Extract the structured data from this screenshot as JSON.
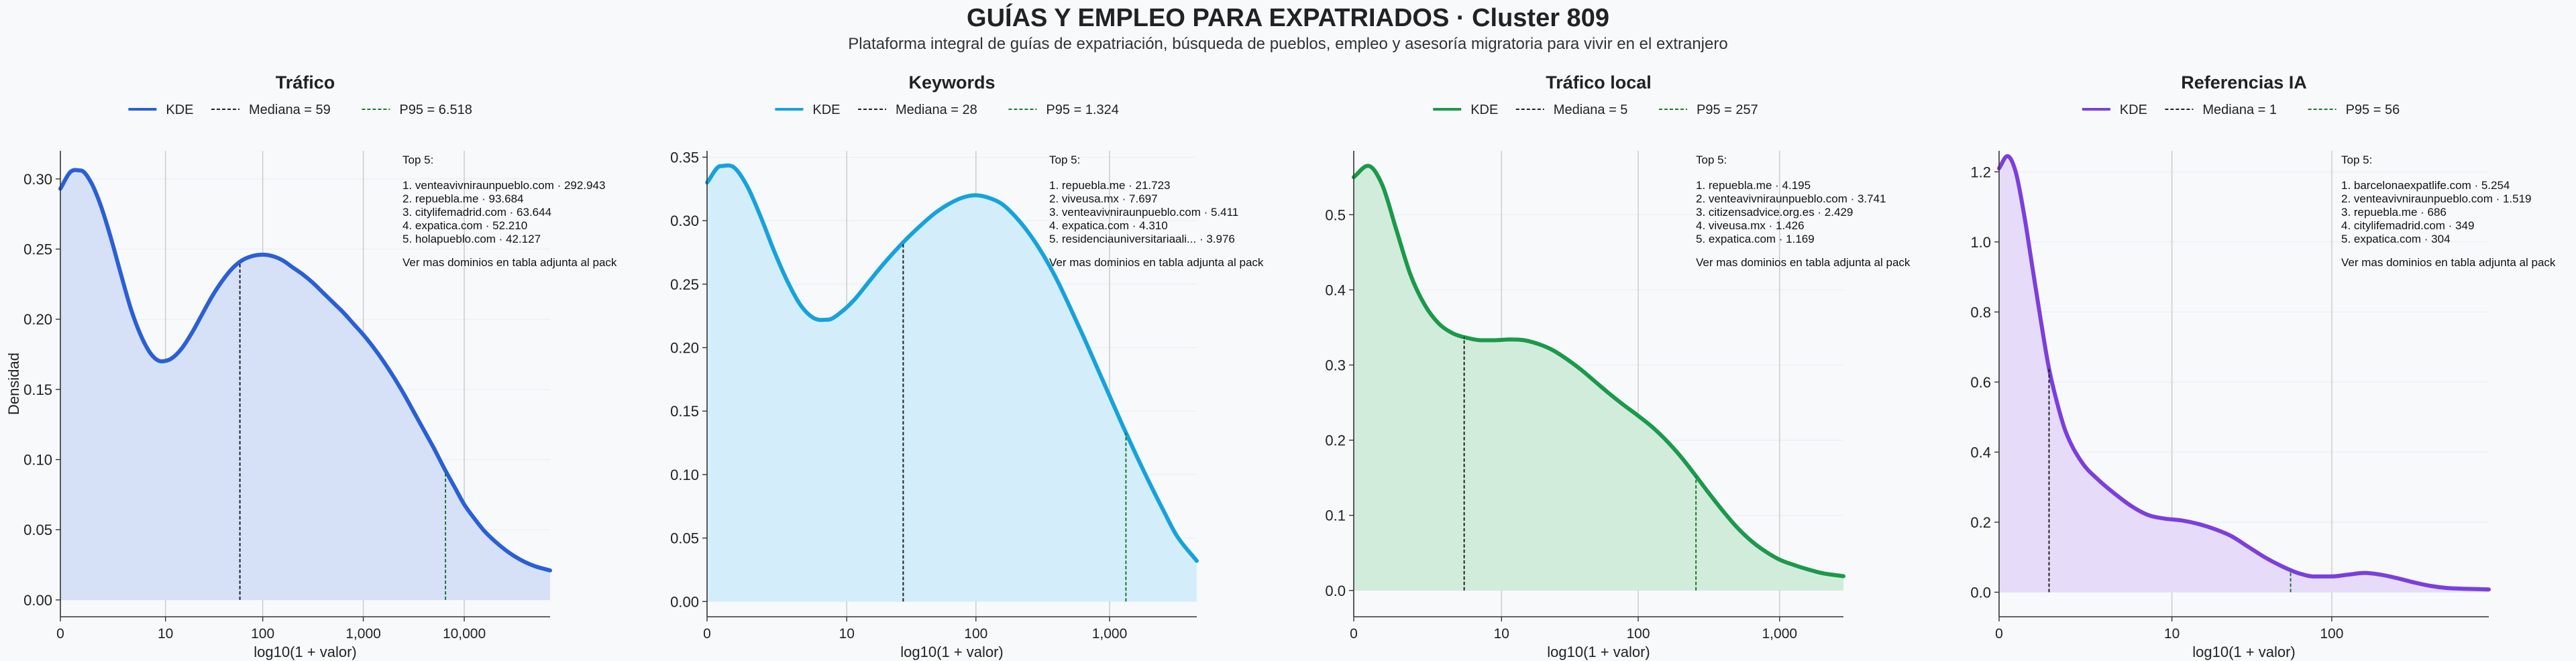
{
  "title": "GUÍAS Y EMPLEO PARA EXPATRIADOS · Cluster 809",
  "subtitle": "Plataforma integral de guías de expatriación, búsqueda de pueblos, empleo y asesoría migratoria para vivir en el extranjero",
  "chart_data": [
    {
      "type": "area",
      "title": "Tráfico",
      "xlabel": "log10(1 + valor)",
      "ylabel": "Densidad",
      "color": "#2a5fd6",
      "fill": "#d6e1f8",
      "xlim": [
        0,
        4.85
      ],
      "ylim": [
        -0.012,
        0.32
      ],
      "xticks": [
        0,
        1.041,
        2.004,
        3.0,
        4.0
      ],
      "xticklabels": [
        "0",
        "10",
        "100",
        "1,000",
        "10,000"
      ],
      "yticks": [
        0.0,
        0.05,
        0.1,
        0.15,
        0.2,
        0.25,
        0.3
      ],
      "yticklabels": [
        "0.00",
        "0.05",
        "0.10",
        "0.15",
        "0.20",
        "0.25",
        "0.30"
      ],
      "legend": {
        "kde": "KDE",
        "median": "Mediana = 59",
        "p95": "P95 = 6.518"
      },
      "median_x": 1.778,
      "p95_x": 3.814,
      "kde_x": [
        0,
        0.1,
        0.2,
        0.3,
        0.4,
        0.5,
        0.6,
        0.7,
        0.8,
        0.9,
        1.0,
        1.1,
        1.2,
        1.3,
        1.4,
        1.5,
        1.6,
        1.7,
        1.8,
        1.9,
        2.0,
        2.1,
        2.2,
        2.3,
        2.4,
        2.5,
        2.6,
        2.7,
        2.8,
        2.9,
        3.0,
        3.1,
        3.2,
        3.3,
        3.4,
        3.5,
        3.6,
        3.7,
        3.8,
        3.9,
        4.0,
        4.1,
        4.2,
        4.3,
        4.4,
        4.5,
        4.6,
        4.7,
        4.85
      ],
      "kde_y": [
        0.293,
        0.305,
        0.306,
        0.298,
        0.281,
        0.258,
        0.232,
        0.207,
        0.188,
        0.175,
        0.17,
        0.172,
        0.179,
        0.19,
        0.203,
        0.216,
        0.227,
        0.236,
        0.242,
        0.245,
        0.246,
        0.245,
        0.242,
        0.237,
        0.232,
        0.226,
        0.219,
        0.212,
        0.205,
        0.197,
        0.189,
        0.18,
        0.17,
        0.159,
        0.147,
        0.134,
        0.121,
        0.108,
        0.094,
        0.081,
        0.068,
        0.058,
        0.049,
        0.042,
        0.036,
        0.031,
        0.027,
        0.024,
        0.021
      ],
      "top5": {
        "heading": "Top 5:",
        "items": [
          "1. venteavivniraunpueblo.com · 292.943",
          "2. repuebla.me · 93.684",
          "3. citylifemadrid.com · 63.644",
          "4. expatica.com · 52.210",
          "5. holapueblo.com · 42.127"
        ],
        "footer": "Ver mas dominios en tabla adjunta al pack"
      }
    },
    {
      "type": "area",
      "title": "Keywords",
      "xlabel": "log10(1 + valor)",
      "ylabel": "",
      "color": "#17a2dc",
      "fill": "#d3eefa",
      "xlim": [
        0,
        3.65
      ],
      "ylim": [
        -0.012,
        0.355
      ],
      "xticks": [
        0,
        1.041,
        2.004,
        3.0
      ],
      "xticklabels": [
        "0",
        "10",
        "100",
        "1,000"
      ],
      "yticks": [
        0.0,
        0.05,
        0.1,
        0.15,
        0.2,
        0.25,
        0.3,
        0.35
      ],
      "yticklabels": [
        "0.00",
        "0.05",
        "0.10",
        "0.15",
        "0.20",
        "0.25",
        "0.30",
        "0.35"
      ],
      "legend": {
        "kde": "KDE",
        "median": "Mediana = 28",
        "p95": "P95 = 1.324"
      },
      "median_x": 1.462,
      "p95_x": 3.122,
      "kde_x": [
        0,
        0.1,
        0.2,
        0.3,
        0.4,
        0.5,
        0.6,
        0.7,
        0.8,
        0.9,
        1.0,
        1.1,
        1.2,
        1.3,
        1.4,
        1.5,
        1.6,
        1.7,
        1.8,
        1.9,
        2.0,
        2.1,
        2.2,
        2.3,
        2.4,
        2.5,
        2.6,
        2.7,
        2.8,
        2.9,
        3.0,
        3.1,
        3.2,
        3.3,
        3.4,
        3.5,
        3.65
      ],
      "kde_y": [
        0.33,
        0.343,
        0.342,
        0.327,
        0.303,
        0.276,
        0.252,
        0.233,
        0.223,
        0.222,
        0.228,
        0.238,
        0.251,
        0.264,
        0.276,
        0.287,
        0.297,
        0.306,
        0.313,
        0.318,
        0.32,
        0.318,
        0.313,
        0.303,
        0.29,
        0.274,
        0.255,
        0.233,
        0.21,
        0.186,
        0.162,
        0.138,
        0.115,
        0.093,
        0.072,
        0.052,
        0.032
      ],
      "top5": {
        "heading": "Top 5:",
        "items": [
          "1. repuebla.me · 21.723",
          "2. viveusa.mx · 7.697",
          "3. venteavivniraunpueblo.com · 5.411",
          "4. expatica.com · 4.310",
          "5. residenciauniversitariaali... · 3.976"
        ],
        "footer": "Ver mas dominios en tabla adjunta al pack"
      }
    },
    {
      "type": "area",
      "title": "Tráfico local",
      "xlabel": "log10(1 + valor)",
      "ylabel": "",
      "color": "#1a9a4a",
      "fill": "#d2ecdb",
      "xlim": [
        0,
        3.45
      ],
      "ylim": [
        -0.035,
        0.585
      ],
      "xticks": [
        0,
        1.041,
        2.004,
        3.0
      ],
      "xticklabels": [
        "0",
        "10",
        "100",
        "1,000"
      ],
      "yticks": [
        0.0,
        0.1,
        0.2,
        0.3,
        0.4,
        0.5
      ],
      "yticklabels": [
        "0.0",
        "0.1",
        "0.2",
        "0.3",
        "0.4",
        "0.5"
      ],
      "legend": {
        "kde": "KDE",
        "median": "Mediana = 5",
        "p95": "P95 = 257"
      },
      "median_x": 0.778,
      "p95_x": 2.411,
      "kde_x": [
        0,
        0.1,
        0.2,
        0.3,
        0.4,
        0.5,
        0.6,
        0.7,
        0.8,
        0.9,
        1.0,
        1.1,
        1.2,
        1.3,
        1.4,
        1.5,
        1.6,
        1.7,
        1.8,
        1.9,
        2.0,
        2.1,
        2.2,
        2.3,
        2.4,
        2.5,
        2.6,
        2.7,
        2.8,
        2.9,
        3.0,
        3.1,
        3.2,
        3.3,
        3.45
      ],
      "kde_y": [
        0.55,
        0.565,
        0.54,
        0.48,
        0.42,
        0.38,
        0.355,
        0.342,
        0.336,
        0.333,
        0.333,
        0.334,
        0.333,
        0.328,
        0.32,
        0.308,
        0.294,
        0.278,
        0.262,
        0.247,
        0.233,
        0.218,
        0.2,
        0.179,
        0.155,
        0.13,
        0.106,
        0.084,
        0.066,
        0.052,
        0.041,
        0.034,
        0.028,
        0.023,
        0.019
      ],
      "top5": {
        "heading": "Top 5:",
        "items": [
          "1. repuebla.me · 4.195",
          "2. venteavivniraunpueblo.com · 3.741",
          "3. citizensadvice.org.es · 2.429",
          "4. viveusa.mx · 1.426",
          "5. expatica.com · 1.169"
        ],
        "footer": "Ver mas dominios en tabla adjunta al pack"
      }
    },
    {
      "type": "area",
      "title": "Referencias IA",
      "xlabel": "log10(1 + valor)",
      "ylabel": "",
      "color": "#7b3fdc",
      "fill": "#e6dbf8",
      "xlim": [
        0,
        2.95
      ],
      "ylim": [
        -0.07,
        1.26
      ],
      "xticks": [
        0,
        1.041,
        2.004
      ],
      "xticklabels": [
        "0",
        "10",
        "100"
      ],
      "yticks": [
        0.0,
        0.2,
        0.4,
        0.6,
        0.8,
        1.0,
        1.2
      ],
      "yticklabels": [
        "0.0",
        "0.2",
        "0.4",
        "0.6",
        "0.8",
        "1.0",
        "1.2"
      ],
      "legend": {
        "kde": "KDE",
        "median": "Mediana = 1",
        "p95": "P95 = 56"
      },
      "median_x": 0.301,
      "p95_x": 1.756,
      "kde_x": [
        0,
        0.05,
        0.1,
        0.15,
        0.2,
        0.25,
        0.3,
        0.35,
        0.4,
        0.5,
        0.6,
        0.7,
        0.8,
        0.9,
        1.0,
        1.1,
        1.2,
        1.3,
        1.4,
        1.5,
        1.6,
        1.7,
        1.8,
        1.9,
        2.0,
        2.1,
        2.2,
        2.3,
        2.4,
        2.5,
        2.6,
        2.7,
        2.8,
        2.95
      ],
      "kde_y": [
        1.21,
        1.245,
        1.2,
        1.08,
        0.93,
        0.78,
        0.64,
        0.54,
        0.46,
        0.37,
        0.32,
        0.28,
        0.245,
        0.22,
        0.21,
        0.205,
        0.195,
        0.18,
        0.16,
        0.13,
        0.1,
        0.075,
        0.055,
        0.045,
        0.045,
        0.05,
        0.055,
        0.05,
        0.04,
        0.028,
        0.018,
        0.012,
        0.01,
        0.008
      ],
      "top5": {
        "heading": "Top 5:",
        "items": [
          "1. barcelonaexpatlife.com · 5.254",
          "2. venteavivniraunpueblo.com · 1.519",
          "3. repuebla.me · 686",
          "4. citylifemadrid.com · 349",
          "5. expatica.com · 304"
        ],
        "footer": "Ver mas dominios en tabla adjunta al pack"
      }
    }
  ]
}
